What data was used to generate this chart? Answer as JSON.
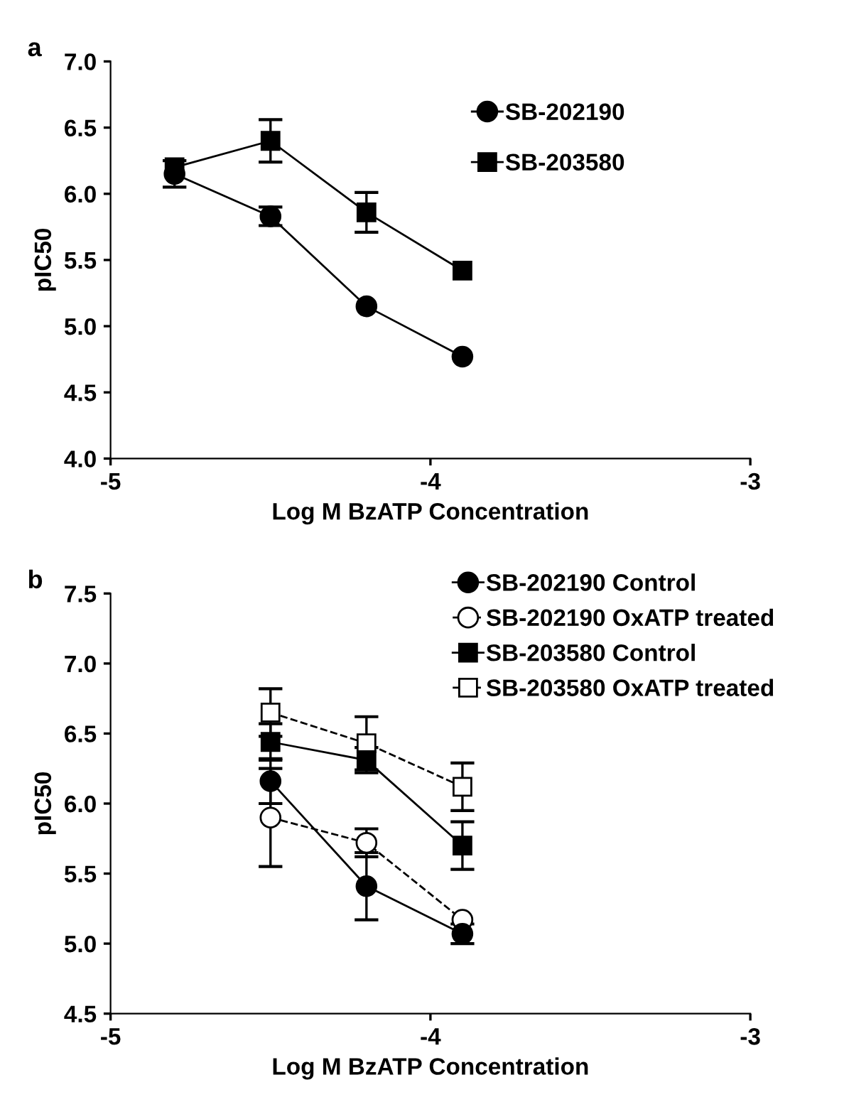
{
  "chart_data": [
    {
      "type": "line",
      "annotations": [
        "a"
      ],
      "xlabel": "Log M BzATP Concentration",
      "ylabel": "pIC50",
      "xlim": [
        -5,
        -3
      ],
      "xticks": [
        -5,
        -4,
        -3
      ],
      "ylim": [
        4.0,
        7.0
      ],
      "yticks": [
        {
          "value": 4.0,
          "label": "4.0"
        },
        {
          "value": 4.5,
          "label": "4.5"
        },
        {
          "value": 5.0,
          "label": "5.0"
        },
        {
          "value": 5.5,
          "label": "5.5"
        },
        {
          "value": 6.0,
          "label": "6.0"
        },
        {
          "value": 6.5,
          "label": "6.5"
        },
        {
          "value": 7.0,
          "label": "7.0"
        }
      ],
      "grid": false,
      "legend": "top right",
      "series": [
        {
          "name": "SB-202190",
          "color": "#000000",
          "marker": "circle",
          "line_style": "solid",
          "x": [
            -4.8,
            -4.5,
            -4.2,
            -3.9
          ],
          "values": [
            6.15,
            5.83,
            5.15,
            4.77
          ],
          "errors": [
            0.1,
            0.07,
            null,
            null
          ]
        },
        {
          "name": "SB-203580",
          "color": "#000000",
          "marker": "square",
          "line_style": "solid",
          "x": [
            -4.8,
            -4.5,
            -4.2,
            -3.9
          ],
          "values": [
            6.2,
            6.4,
            5.86,
            5.42
          ],
          "errors": [
            null,
            0.16,
            0.15,
            null
          ]
        }
      ]
    },
    {
      "type": "line",
      "annotations": [
        "b"
      ],
      "xlabel": "Log M BzATP Concentration",
      "ylabel": "pIC50",
      "xlim": [
        -5,
        -3
      ],
      "xticks": [
        -5,
        -4,
        -3
      ],
      "ylim": [
        4.5,
        7.5
      ],
      "yticks": [
        {
          "value": 4.5,
          "label": "4.5"
        },
        {
          "value": 5.0,
          "label": "5.0"
        },
        {
          "value": 5.5,
          "label": "5.5"
        },
        {
          "value": 6.0,
          "label": "6.0"
        },
        {
          "value": 6.5,
          "label": "6.5"
        },
        {
          "value": 7.0,
          "label": "7.0"
        },
        {
          "value": 7.5,
          "label": "7.5"
        }
      ],
      "grid": false,
      "legend": "top right",
      "series": [
        {
          "name": "SB-202190 Control",
          "color": "#000000",
          "marker": "circle",
          "line_style": "solid",
          "x": [
            -4.5,
            -4.2,
            -3.9
          ],
          "values": [
            6.16,
            5.41,
            5.07
          ],
          "errors": [
            0.16,
            0.24,
            0.07
          ]
        },
        {
          "name": "SB-202190 OxATP treated",
          "color": "#000000",
          "marker": "circle",
          "line_style": "dashed",
          "x": [
            -4.5,
            -4.2,
            -3.9
          ],
          "values": [
            5.9,
            5.72,
            5.17
          ],
          "errors": [
            0.35,
            0.1,
            null
          ]
        },
        {
          "name": "SB-203580 Control",
          "color": "#000000",
          "marker": "square",
          "line_style": "solid",
          "x": [
            -4.5,
            -4.2,
            -3.9
          ],
          "values": [
            6.44,
            6.31,
            5.7
          ],
          "errors": [
            0.13,
            0.09,
            0.17
          ]
        },
        {
          "name": "SB-203580 OxATP treated",
          "color": "#000000",
          "marker": "square",
          "line_style": "dashed",
          "x": [
            -4.5,
            -4.2,
            -3.9
          ],
          "values": [
            6.65,
            6.43,
            6.12
          ],
          "errors": [
            0.17,
            0.19,
            0.17
          ]
        }
      ]
    }
  ]
}
